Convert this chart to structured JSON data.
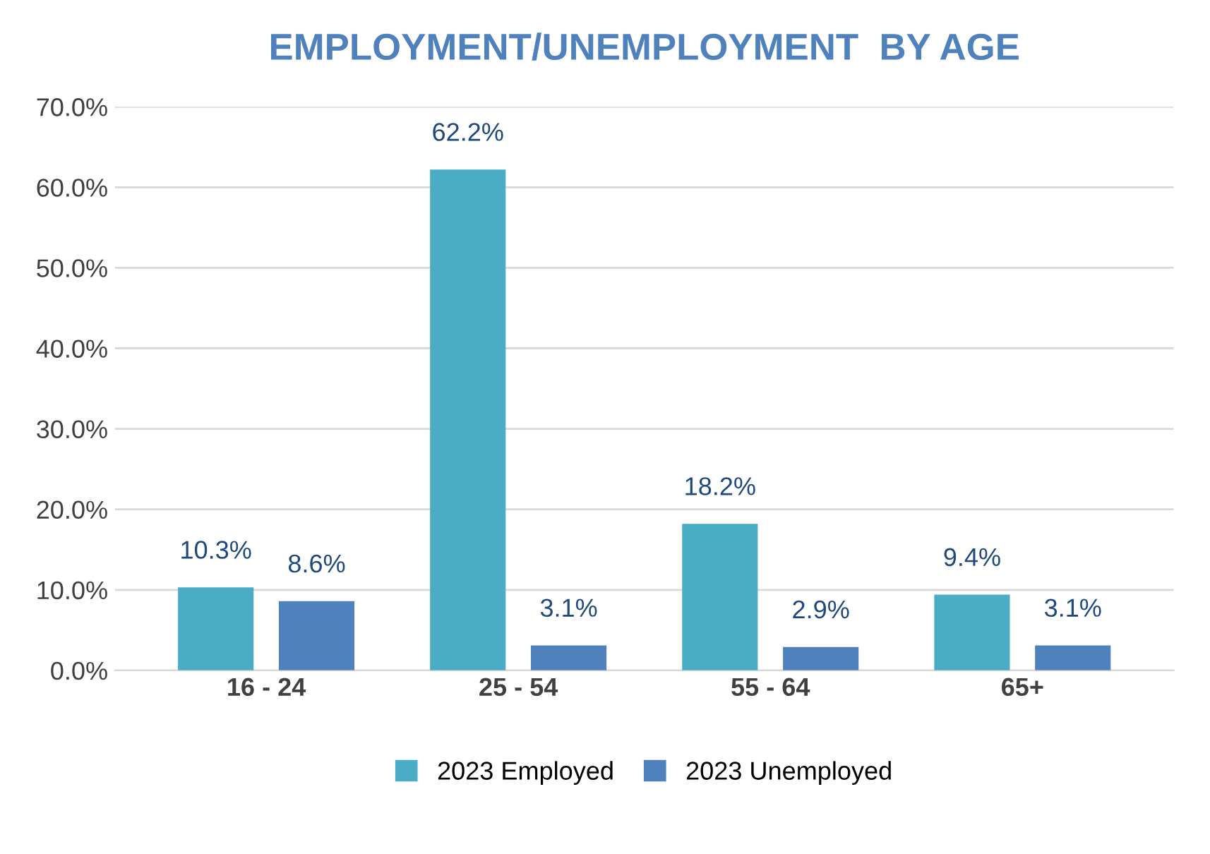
{
  "chart_data": {
    "type": "bar",
    "title": "EMPLOYMENT/UNEMPLOYMENT  BY AGE",
    "categories": [
      "16 - 24",
      "25 - 54",
      "55 - 64",
      "65+"
    ],
    "series": [
      {
        "name": "2023 Employed",
        "color": "#4bacc6",
        "values": [
          10.3,
          62.2,
          18.2,
          9.4
        ],
        "value_labels": [
          "10.3%",
          "62.2%",
          "18.2%",
          "9.4%"
        ]
      },
      {
        "name": "2023 Unemployed",
        "color": "#4f81bd",
        "values": [
          8.6,
          3.1,
          2.9,
          3.1
        ],
        "value_labels": [
          "8.6%",
          "3.1%",
          "2.9%",
          "3.1%"
        ]
      }
    ],
    "ylim": [
      0,
      70
    ],
    "yticks": [
      {
        "value": 0,
        "label": "0.0%"
      },
      {
        "value": 10,
        "label": "10.0%"
      },
      {
        "value": 20,
        "label": "20.0%"
      },
      {
        "value": 30,
        "label": "30.0%"
      },
      {
        "value": 40,
        "label": "40.0%"
      },
      {
        "value": 50,
        "label": "50.0%"
      },
      {
        "value": 60,
        "label": "60.0%"
      },
      {
        "value": 70,
        "label": "70.0%"
      }
    ],
    "grid": "y",
    "legend": "bottom"
  }
}
